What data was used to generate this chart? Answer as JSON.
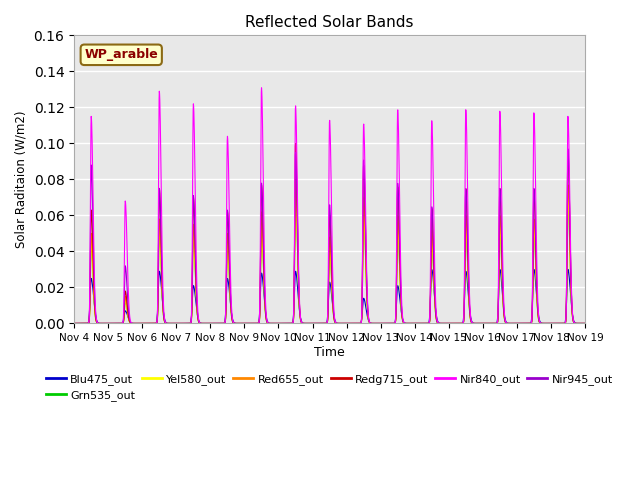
{
  "title": "Reflected Solar Bands",
  "xlabel": "Time",
  "ylabel": "Solar Raditaion (W/m2)",
  "annotation": "WP_arable",
  "ylim": [
    0,
    0.16
  ],
  "yticks": [
    0.0,
    0.02,
    0.04,
    0.06,
    0.08,
    0.1,
    0.12,
    0.14,
    0.16
  ],
  "xtick_labels": [
    "Nov 4",
    "Nov 5",
    "Nov 6",
    "Nov 7",
    "Nov 8",
    "Nov 9",
    "Nov 10",
    "Nov 11",
    "Nov 12",
    "Nov 13",
    "Nov 14",
    "Nov 15",
    "Nov 16",
    "Nov 17",
    "Nov 18",
    "Nov 19"
  ],
  "series_colors": {
    "Blu475_out": "#0000cc",
    "Grn535_out": "#00cc00",
    "Yel580_out": "#ffff00",
    "Red655_out": "#ff8800",
    "Redg715_out": "#cc0000",
    "Nir840_out": "#ff00ff",
    "Nir945_out": "#9900cc"
  },
  "background_color": "#e8e8e8",
  "grid_color": "#ffffff",
  "annotation_bg": "#ffffcc",
  "annotation_text_color": "#8b0000",
  "nir840_peaks": [
    0.115,
    0.068,
    0.129,
    0.122,
    0.104,
    0.131,
    0.121,
    0.113,
    0.111,
    0.119,
    0.113,
    0.119,
    0.118,
    0.117,
    0.115
  ],
  "nir945_peaks": [
    0.088,
    0.032,
    0.075,
    0.071,
    0.063,
    0.078,
    0.095,
    0.066,
    0.091,
    0.078,
    0.065,
    0.075,
    0.075,
    0.075,
    0.097
  ],
  "redg715_peaks": [
    0.063,
    0.018,
    0.075,
    0.07,
    0.062,
    0.077,
    0.1,
    0.06,
    0.088,
    0.076,
    0.064,
    0.075,
    0.075,
    0.074,
    0.096
  ],
  "red655_peaks": [
    0.05,
    0.015,
    0.058,
    0.055,
    0.05,
    0.062,
    0.08,
    0.048,
    0.07,
    0.06,
    0.052,
    0.06,
    0.06,
    0.058,
    0.077
  ],
  "yel580_peaks": [
    0.045,
    0.013,
    0.053,
    0.05,
    0.045,
    0.056,
    0.073,
    0.043,
    0.063,
    0.054,
    0.047,
    0.054,
    0.054,
    0.053,
    0.07
  ],
  "grn535_peaks": [
    0.045,
    0.013,
    0.053,
    0.05,
    0.045,
    0.056,
    0.073,
    0.043,
    0.063,
    0.054,
    0.047,
    0.054,
    0.054,
    0.053,
    0.07
  ],
  "blu475_peaks": [
    0.025,
    0.007,
    0.029,
    0.021,
    0.025,
    0.028,
    0.029,
    0.023,
    0.014,
    0.021,
    0.03,
    0.029,
    0.03,
    0.03,
    0.03
  ],
  "peak_hour": 0.5,
  "n_days": 15,
  "points_per_day": 144
}
